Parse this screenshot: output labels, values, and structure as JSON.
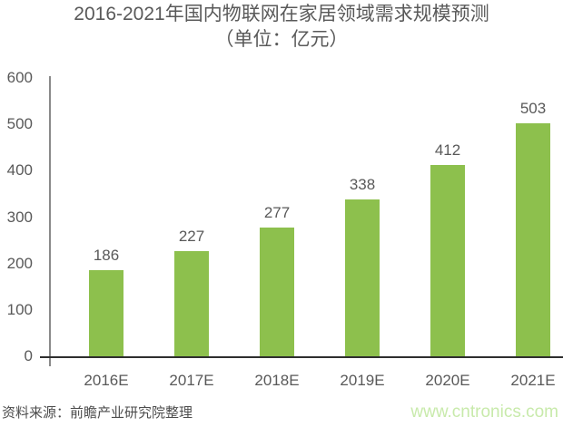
{
  "header": {
    "title": "2016-2021年国内物联网在家居领域需求规模预测",
    "subtitle": "（单位：亿元）"
  },
  "footer": {
    "source": "资料来源：前瞻产业研究院整理",
    "watermark": "www.cntronics.com"
  },
  "chart_data": {
    "type": "bar",
    "title": "2016-2021年国内物联网在家居领域需求规模预测",
    "subtitle": "（单位：亿元）",
    "categories": [
      "2016E",
      "2017E",
      "2018E",
      "2019E",
      "2020E",
      "2021E"
    ],
    "values": [
      186,
      227,
      277,
      338,
      412,
      503
    ],
    "data_labels_shown": true,
    "xlabel": "",
    "ylabel": "",
    "ylim": [
      0,
      600
    ],
    "yticks": [
      0,
      100,
      200,
      300,
      400,
      500,
      600
    ],
    "grid": false,
    "legend": "none",
    "bar_color": "#8dc04d",
    "text_color": "#595959"
  }
}
